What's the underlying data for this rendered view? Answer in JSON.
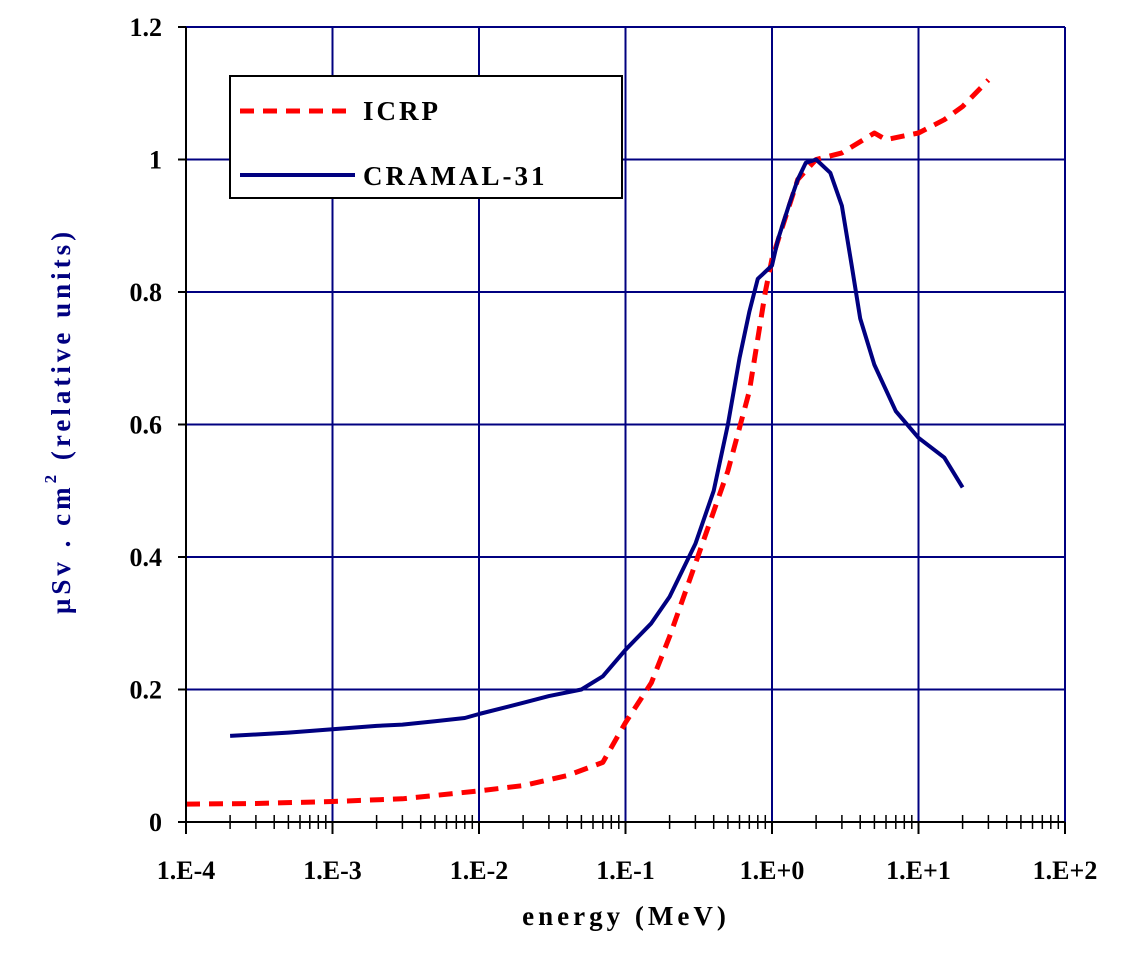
{
  "chart_data": {
    "type": "line",
    "xscale": "log",
    "xlim": [
      0.0001,
      100
    ],
    "ylim": [
      0,
      1.2
    ],
    "grid": true,
    "legend_position": "top-left",
    "xlabel": "energy (MeV)",
    "ylabel_main": "µSv . cm",
    "ylabel_sup": "2",
    "ylabel_tail": " (relative units)",
    "x_tick_labels": [
      "1.E-4",
      "1.E-3",
      "1.E-2",
      "1.E-1",
      "1.E+0",
      "1.E+1",
      "1.E+2"
    ],
    "y_tick_labels": [
      "0",
      "0.2",
      "0.4",
      "0.6",
      "0.8",
      "1",
      "1.2"
    ],
    "series": [
      {
        "name": "ICRP",
        "color": "#ff0000",
        "style": "dashed",
        "x": [
          0.0001,
          0.0003,
          0.001,
          0.003,
          0.01,
          0.02,
          0.04,
          0.07,
          0.1,
          0.15,
          0.2,
          0.3,
          0.5,
          0.7,
          0.9,
          1.0,
          1.5,
          2.0,
          3.0,
          5.0,
          6.0,
          10,
          15,
          20,
          30
        ],
        "y": [
          0.027,
          0.028,
          0.031,
          0.035,
          0.047,
          0.055,
          0.07,
          0.09,
          0.15,
          0.21,
          0.28,
          0.39,
          0.53,
          0.65,
          0.8,
          0.85,
          0.97,
          1.0,
          1.01,
          1.04,
          1.03,
          1.04,
          1.06,
          1.08,
          1.12
        ]
      },
      {
        "name": "CRAMAL-31",
        "color": "#000080",
        "style": "solid",
        "x": [
          0.0002,
          0.0003,
          0.0005,
          0.001,
          0.002,
          0.003,
          0.005,
          0.008,
          0.01,
          0.02,
          0.03,
          0.05,
          0.07,
          0.1,
          0.15,
          0.2,
          0.3,
          0.4,
          0.5,
          0.6,
          0.7,
          0.8,
          1.0,
          1.1,
          1.3,
          1.5,
          1.7,
          2.0,
          2.5,
          3.0,
          3.5,
          4.0,
          5.0,
          7.0,
          10,
          15,
          20
        ],
        "y": [
          0.13,
          0.132,
          0.135,
          0.14,
          0.145,
          0.147,
          0.152,
          0.157,
          0.163,
          0.18,
          0.19,
          0.2,
          0.22,
          0.26,
          0.3,
          0.34,
          0.42,
          0.5,
          0.6,
          0.7,
          0.77,
          0.82,
          0.84,
          0.88,
          0.93,
          0.97,
          0.995,
          1.0,
          0.98,
          0.93,
          0.84,
          0.76,
          0.69,
          0.62,
          0.58,
          0.55,
          0.505
        ]
      }
    ]
  }
}
